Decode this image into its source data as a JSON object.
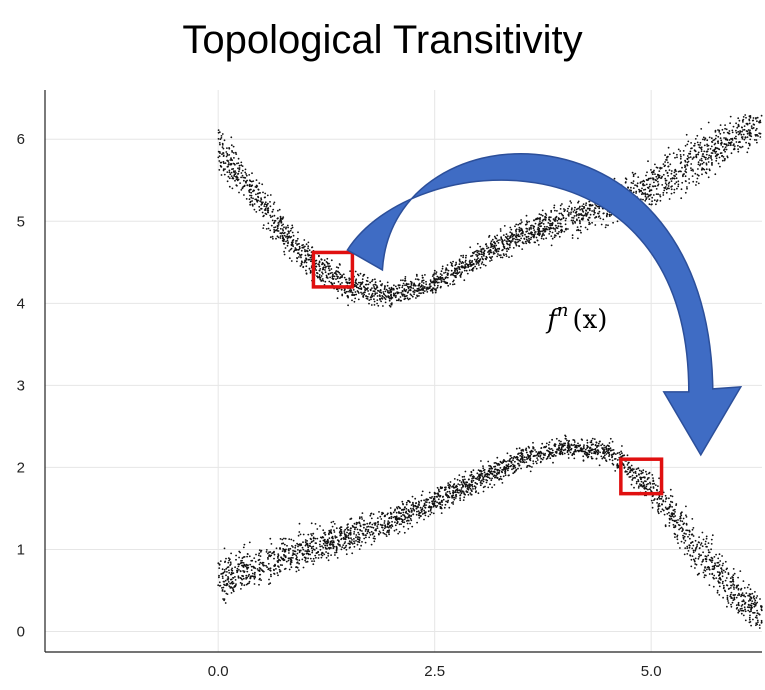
{
  "page": {
    "title": "Topological Transitivity"
  },
  "colors": {
    "points": "#111111",
    "arrow": "#3f6cc4",
    "arrow_edge": "#2c4f9a",
    "highlight": "#e01010",
    "grid": "#e6e6e6"
  },
  "chart_data": {
    "type": "scatter",
    "title": "Topological Transitivity",
    "xlabel": "",
    "ylabel": "",
    "xlim": [
      -2.0,
      6.28
    ],
    "ylim": [
      -0.25,
      6.6
    ],
    "x_ticks": [
      0.0,
      2.5,
      5.0
    ],
    "x_tick_labels": [
      "0.0",
      "2.5",
      "5.0"
    ],
    "y_ticks": [
      0,
      1,
      2,
      3,
      4,
      5,
      6
    ],
    "y_tick_labels": [
      "0",
      "1",
      "2",
      "3",
      "4",
      "5",
      "6"
    ],
    "grid": true,
    "point_color": "#111111",
    "upper_band": {
      "center": [
        [
          0.0,
          5.9
        ],
        [
          0.5,
          5.2
        ],
        [
          1.0,
          4.55
        ],
        [
          1.5,
          4.2
        ],
        [
          2.0,
          4.1
        ],
        [
          2.5,
          4.25
        ],
        [
          3.0,
          4.55
        ],
        [
          3.5,
          4.85
        ],
        [
          4.0,
          5.0
        ],
        [
          4.5,
          5.2
        ],
        [
          5.0,
          5.45
        ],
        [
          5.5,
          5.75
        ],
        [
          6.0,
          6.05
        ],
        [
          6.28,
          6.2
        ]
      ],
      "half_width": [
        0.45,
        0.35,
        0.3,
        0.28,
        0.2,
        0.2,
        0.22,
        0.25,
        0.3,
        0.35,
        0.4,
        0.45,
        0.4,
        0.35
      ]
    },
    "lower_band": {
      "center": [
        [
          0.0,
          0.65
        ],
        [
          0.5,
          0.8
        ],
        [
          1.0,
          1.0
        ],
        [
          1.5,
          1.15
        ],
        [
          2.0,
          1.35
        ],
        [
          2.5,
          1.6
        ],
        [
          3.0,
          1.85
        ],
        [
          3.5,
          2.1
        ],
        [
          4.0,
          2.25
        ],
        [
          4.5,
          2.2
        ],
        [
          5.0,
          1.75
        ],
        [
          5.5,
          1.05
        ],
        [
          6.0,
          0.45
        ],
        [
          6.28,
          0.2
        ]
      ],
      "half_width": [
        0.4,
        0.35,
        0.35,
        0.3,
        0.25,
        0.22,
        0.22,
        0.2,
        0.18,
        0.2,
        0.3,
        0.45,
        0.4,
        0.3
      ]
    },
    "highlight_boxes": [
      {
        "x": [
          1.1,
          1.55
        ],
        "y": [
          4.2,
          4.62
        ]
      },
      {
        "x": [
          4.65,
          5.12
        ],
        "y": [
          1.68,
          2.1
        ]
      }
    ],
    "arrow": {
      "from": [
        1.55,
        4.65
      ],
      "to": [
        5.55,
        2.25
      ],
      "peak_y": 5.4
    },
    "annotation": {
      "text_base": "f",
      "text_sup": "n",
      "text_arg": "(x)",
      "x": 3.8,
      "y": 3.7
    }
  }
}
